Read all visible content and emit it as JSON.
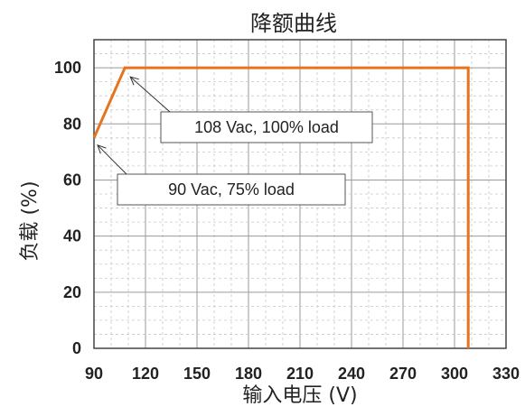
{
  "chart_data": {
    "type": "line",
    "title": "降额曲线",
    "xlabel": "输入电压 (V)",
    "ylabel": "负载 (%)",
    "xlim": [
      90,
      330
    ],
    "ylim": [
      0,
      110
    ],
    "x_ticks": [
      90,
      120,
      150,
      180,
      210,
      240,
      270,
      300,
      330
    ],
    "y_ticks": [
      0,
      20,
      40,
      60,
      80,
      100
    ],
    "grid": "minor dashed, major solid",
    "series": [
      {
        "color": "#E8731F",
        "points": [
          [
            90,
            75
          ],
          [
            108,
            100
          ],
          [
            308,
            100
          ],
          [
            308,
            0
          ]
        ]
      }
    ],
    "annotations": [
      {
        "text": "108 Vac, 100% load",
        "x": 108,
        "y": 100
      },
      {
        "text": "90 Vac, 75% load",
        "x": 90,
        "y": 75
      }
    ]
  }
}
